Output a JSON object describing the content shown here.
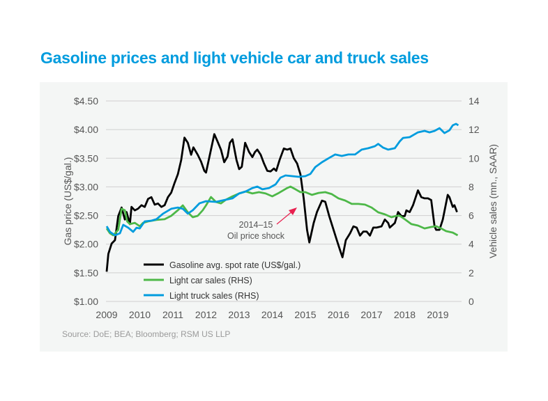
{
  "title": "Gasoline prices and light vehicle car and truck sales",
  "source": "Source: DoE; BEA; Bloomberg; RSM US LLP",
  "chart_data": {
    "type": "line",
    "title": "Gasoline prices and light vehicle car and truck sales",
    "ylabel": "Gas price (US$/gal.)",
    "y2label": "Vehicle sales (mn., SAAR)",
    "xlim": [
      2009,
      2019.7
    ],
    "ylim": [
      1.0,
      4.5
    ],
    "y2lim": [
      0,
      14
    ],
    "x_ticks": [
      "2009",
      "2010",
      "2011",
      "2012",
      "2013",
      "2014",
      "2015",
      "2016",
      "2017",
      "2018",
      "2019"
    ],
    "y_ticks": [
      "$1.00",
      "$1.50",
      "$2.00",
      "$2.50",
      "$3.00",
      "$3.50",
      "$4.00",
      "$4.50"
    ],
    "y2_ticks": [
      "0",
      "2",
      "4",
      "6",
      "8",
      "10",
      "12",
      "14"
    ],
    "grid": true,
    "legend_placement": "bottom-left",
    "annotation": {
      "line1": "2014–15",
      "line2": "Oil price shock",
      "x": 2014.7,
      "y": 2.85
    },
    "series": [
      {
        "name": "Gasoline avg. spot rate (US$/gal.)",
        "axis": "left",
        "color": "#000000",
        "x": [
          2009.0,
          2009.05,
          2009.15,
          2009.25,
          2009.35,
          2009.45,
          2009.55,
          2009.6,
          2009.7,
          2009.75,
          2009.85,
          2009.95,
          2010.05,
          2010.15,
          2010.25,
          2010.35,
          2010.45,
          2010.55,
          2010.65,
          2010.75,
          2010.85,
          2010.95,
          2011.05,
          2011.15,
          2011.25,
          2011.35,
          2011.45,
          2011.55,
          2011.62,
          2011.75,
          2011.85,
          2011.95,
          2012.0,
          2012.15,
          2012.25,
          2012.35,
          2012.45,
          2012.55,
          2012.65,
          2012.72,
          2012.8,
          2012.92,
          2013.0,
          2013.08,
          2013.18,
          2013.3,
          2013.4,
          2013.48,
          2013.55,
          2013.65,
          2013.75,
          2013.85,
          2013.95,
          2014.05,
          2014.12,
          2014.22,
          2014.35,
          2014.45,
          2014.55,
          2014.65,
          2014.75,
          2014.85,
          2014.95,
          2015.05,
          2015.12,
          2015.25,
          2015.35,
          2015.5,
          2015.6,
          2015.72,
          2015.85,
          2015.95,
          2016.05,
          2016.12,
          2016.22,
          2016.35,
          2016.45,
          2016.55,
          2016.65,
          2016.75,
          2016.85,
          2016.95,
          2017.05,
          2017.15,
          2017.3,
          2017.4,
          2017.5,
          2017.55,
          2017.7,
          2017.8,
          2017.9,
          2018.0,
          2018.05,
          2018.15,
          2018.25,
          2018.4,
          2018.5,
          2018.6,
          2018.7,
          2018.8,
          2018.9,
          2018.95,
          2019.05,
          2019.15,
          2019.3,
          2019.35,
          2019.45,
          2019.5,
          2019.58
        ],
        "y": [
          1.52,
          1.83,
          2.01,
          2.07,
          2.49,
          2.64,
          2.43,
          2.56,
          2.35,
          2.65,
          2.59,
          2.62,
          2.68,
          2.65,
          2.79,
          2.82,
          2.69,
          2.71,
          2.65,
          2.68,
          2.82,
          2.9,
          3.07,
          3.22,
          3.47,
          3.86,
          3.77,
          3.56,
          3.69,
          3.56,
          3.44,
          3.28,
          3.25,
          3.65,
          3.92,
          3.79,
          3.65,
          3.43,
          3.53,
          3.77,
          3.83,
          3.47,
          3.31,
          3.35,
          3.77,
          3.61,
          3.52,
          3.61,
          3.65,
          3.56,
          3.41,
          3.28,
          3.27,
          3.32,
          3.28,
          3.47,
          3.67,
          3.65,
          3.67,
          3.5,
          3.41,
          3.22,
          2.8,
          2.25,
          2.03,
          2.37,
          2.56,
          2.76,
          2.74,
          2.49,
          2.25,
          2.07,
          1.89,
          1.77,
          2.07,
          2.19,
          2.31,
          2.29,
          2.15,
          2.22,
          2.22,
          2.15,
          2.29,
          2.29,
          2.31,
          2.43,
          2.37,
          2.29,
          2.37,
          2.56,
          2.49,
          2.49,
          2.59,
          2.56,
          2.68,
          2.94,
          2.82,
          2.8,
          2.8,
          2.77,
          2.31,
          2.25,
          2.25,
          2.43,
          2.86,
          2.82,
          2.65,
          2.68,
          2.56
        ]
      },
      {
        "name": "Light car sales (RHS)",
        "axis": "right",
        "color": "#4DB848",
        "x": [
          2009.0,
          2009.1,
          2009.2,
          2009.35,
          2009.45,
          2009.55,
          2009.62,
          2009.7,
          2009.85,
          2010.0,
          2010.1,
          2010.25,
          2010.5,
          2010.75,
          2010.95,
          2011.15,
          2011.3,
          2011.45,
          2011.6,
          2011.75,
          2011.9,
          2012.0,
          2012.15,
          2012.3,
          2012.45,
          2012.6,
          2012.8,
          2013.0,
          2013.2,
          2013.4,
          2013.6,
          2013.8,
          2014.0,
          2014.2,
          2014.45,
          2014.55,
          2014.7,
          2014.85,
          2015.0,
          2015.2,
          2015.4,
          2015.6,
          2015.8,
          2016.0,
          2016.2,
          2016.4,
          2016.6,
          2016.8,
          2017.0,
          2017.2,
          2017.4,
          2017.6,
          2017.75,
          2017.85,
          2018.0,
          2018.2,
          2018.4,
          2018.6,
          2018.8,
          2018.95,
          2019.1,
          2019.25,
          2019.45,
          2019.6
        ],
        "y": [
          5.1,
          4.76,
          4.62,
          5.0,
          6.47,
          6.37,
          5.59,
          5.4,
          5.49,
          5.25,
          5.49,
          5.59,
          5.69,
          5.74,
          5.98,
          6.37,
          6.71,
          6.22,
          5.88,
          5.98,
          6.37,
          6.71,
          7.29,
          6.95,
          6.85,
          7.1,
          7.34,
          7.54,
          7.68,
          7.54,
          7.63,
          7.54,
          7.34,
          7.58,
          7.92,
          8.02,
          7.83,
          7.63,
          7.63,
          7.44,
          7.58,
          7.63,
          7.49,
          7.2,
          7.05,
          6.81,
          6.81,
          6.76,
          6.56,
          6.22,
          6.08,
          5.88,
          5.98,
          5.98,
          5.74,
          5.4,
          5.3,
          5.1,
          5.2,
          5.25,
          5.1,
          4.91,
          4.81,
          4.62
        ]
      },
      {
        "name": "Light truck sales (RHS)",
        "axis": "right",
        "color": "#009CDE",
        "x": [
          2009.0,
          2009.1,
          2009.25,
          2009.4,
          2009.5,
          2009.65,
          2009.8,
          2009.9,
          2010.0,
          2010.15,
          2010.35,
          2010.5,
          2010.7,
          2010.95,
          2011.15,
          2011.3,
          2011.45,
          2011.6,
          2011.8,
          2012.0,
          2012.3,
          2012.6,
          2012.8,
          2013.0,
          2013.2,
          2013.4,
          2013.55,
          2013.7,
          2013.9,
          2014.1,
          2014.25,
          2014.4,
          2014.6,
          2014.8,
          2015.0,
          2015.15,
          2015.3,
          2015.5,
          2015.7,
          2015.9,
          2016.1,
          2016.3,
          2016.5,
          2016.7,
          2016.9,
          2017.1,
          2017.2,
          2017.35,
          2017.5,
          2017.7,
          2017.85,
          2017.95,
          2018.15,
          2018.4,
          2018.6,
          2018.75,
          2018.9,
          2019.05,
          2019.2,
          2019.35,
          2019.45,
          2019.55,
          2019.62
        ],
        "y": [
          5.25,
          4.86,
          4.62,
          4.76,
          5.35,
          5.15,
          4.86,
          5.15,
          5.1,
          5.59,
          5.64,
          5.74,
          6.13,
          6.47,
          6.56,
          6.47,
          6.13,
          6.37,
          6.85,
          7.0,
          6.95,
          7.1,
          7.2,
          7.54,
          7.68,
          7.92,
          8.02,
          7.83,
          7.92,
          8.17,
          8.65,
          8.8,
          8.75,
          8.7,
          8.75,
          8.9,
          9.38,
          9.72,
          10.0,
          10.26,
          10.16,
          10.26,
          10.26,
          10.6,
          10.7,
          10.84,
          11.0,
          10.74,
          10.6,
          10.7,
          11.18,
          11.42,
          11.47,
          11.81,
          11.91,
          11.81,
          11.91,
          12.1,
          11.76,
          11.95,
          12.3,
          12.4,
          12.3
        ]
      }
    ]
  }
}
